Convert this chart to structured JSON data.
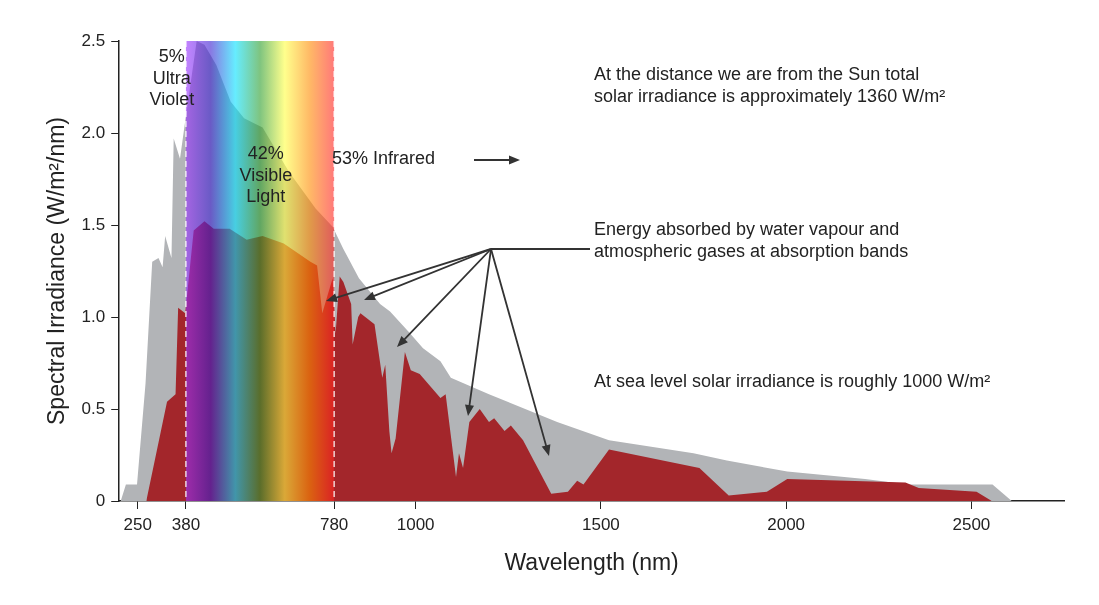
{
  "chart_data": {
    "type": "area",
    "xlabel": "Wavelength (nm)",
    "ylabel": "Spectral Irradiance (W/m²/nm)",
    "xlim": [
      200,
      2750
    ],
    "xticks": [
      250,
      380,
      780,
      1000,
      1500,
      2000,
      2500
    ],
    "ylim": [
      0,
      2.5
    ],
    "yticks": [
      0,
      0.5,
      {
        "value": 1,
        "label": "1.0"
      },
      {
        "value": 1.5,
        "label": "1.5"
      },
      {
        "value": 2,
        "label": "2.0"
      },
      2.5
    ],
    "grid": false,
    "legend": false,
    "series": [
      {
        "color": "#b2b4b7",
        "x": [
          204,
          218,
          248,
          271,
          289,
          306,
          317,
          324,
          341,
          347,
          364,
          375,
          409,
          430,
          462,
          501,
          537,
          587,
          658,
          730,
          776,
          805,
          847,
          904,
          931,
          981,
          1020,
          1067,
          1095,
          1198,
          1382,
          1522,
          1750,
          1840,
          2003,
          2213,
          2330,
          2557,
          2609
        ],
        "values": [
          0,
          0.09,
          0.09,
          0.64,
          1.3,
          1.32,
          1.27,
          1.44,
          1.32,
          1.97,
          1.86,
          2.02,
          2.5,
          2.48,
          2.37,
          2.17,
          2.08,
          2.03,
          1.79,
          1.59,
          1.49,
          1.37,
          1.21,
          1.07,
          1.03,
          0.92,
          0.83,
          0.76,
          0.67,
          0.58,
          0.43,
          0.33,
          0.26,
          0.22,
          0.16,
          0.12,
          0.09,
          0.09,
          0
        ]
      },
      {
        "color": "#a3262b",
        "x": [
          273,
          329,
          352,
          359,
          378,
          401,
          430,
          455,
          498,
          544,
          587,
          644,
          716,
          734,
          748,
          776,
          784,
          795,
          805,
          826,
          830,
          845,
          851,
          889,
          910,
          918,
          929,
          935,
          946,
          971,
          987,
          1011,
          1067,
          1081,
          1109,
          1117,
          1128,
          1145,
          1173,
          1198,
          1212,
          1240,
          1257,
          1290,
          1366,
          1411,
          1436,
          1453,
          1522,
          1766,
          1845,
          1948,
          2003,
          2322,
          2358,
          2514,
          2555
        ],
        "values": [
          0,
          0.54,
          0.58,
          1.05,
          1.02,
          1.47,
          1.52,
          1.48,
          1.48,
          1.42,
          1.44,
          1.4,
          1.3,
          1.28,
          1.02,
          1.21,
          0.91,
          1.22,
          1.19,
          1.07,
          0.85,
          1.0,
          1.02,
          0.96,
          0.67,
          0.74,
          0.38,
          0.26,
          0.34,
          0.81,
          0.71,
          0.69,
          0.56,
          0.58,
          0.13,
          0.26,
          0.18,
          0.43,
          0.5,
          0.43,
          0.45,
          0.38,
          0.41,
          0.33,
          0.04,
          0.05,
          0.11,
          0.09,
          0.28,
          0.18,
          0.03,
          0.05,
          0.12,
          0.1,
          0.07,
          0.05,
          0
        ]
      }
    ],
    "bands": [
      {
        "axis": "x",
        "from": 380,
        "to": 780
      }
    ],
    "ref_lines": [
      {
        "axis": "x",
        "value": 380,
        "color": "#ffffff",
        "line_style": "dashed"
      },
      {
        "axis": "x",
        "value": 780,
        "color": "#ffffff",
        "line_style": "dashed"
      }
    ],
    "annotations": [
      "5%\nUltra\nViolet",
      "42%\nVisible\nLight",
      "53% Infrared",
      "At the distance we are from the Sun total\nsolar irradiance is approximately 1360 W/m²",
      "Energy absorbed by water vapour and\natmospheric gases at absorption bands",
      "At sea level solar irradiance is roughly 1000 W/m²"
    ]
  }
}
